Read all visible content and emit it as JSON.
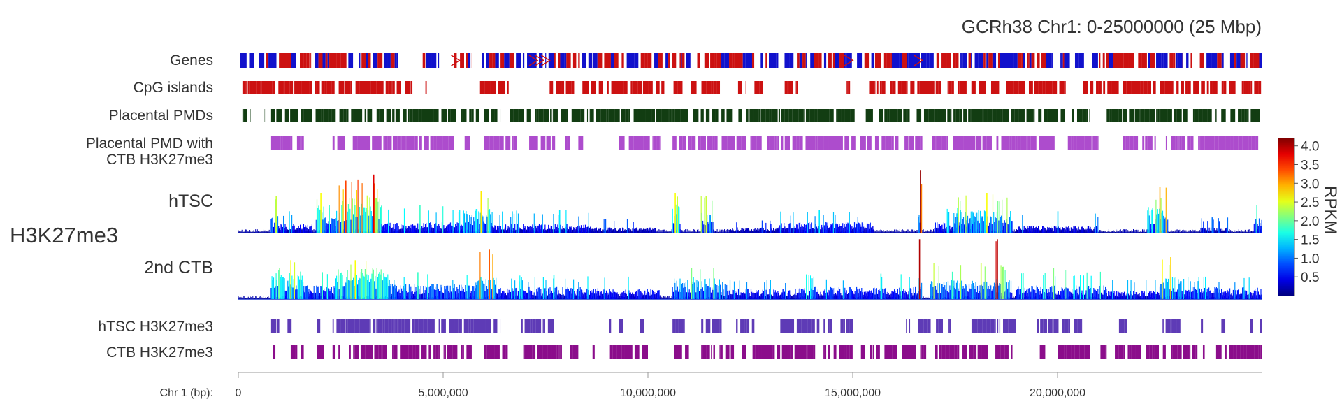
{
  "chart_data": {
    "type": "genome_browser_tracks",
    "title": "GCRh38 Chr1: 0-25000000 (25 Mbp)",
    "genomic_range": [
      0,
      25000000
    ],
    "xaxis": {
      "label": "Chr 1 (bp):",
      "ticks": [
        0,
        5000000,
        10000000,
        15000000,
        20000000
      ],
      "tick_labels": [
        "0",
        "5,000,000",
        "10,000,000",
        "15,000,000",
        "20,000,000"
      ]
    },
    "group_label": "H3K27me3",
    "interval_tracks_top": [
      {
        "key": "genes",
        "label": "Genes",
        "colors": [
          "#cc1111",
          "#1111cc"
        ],
        "intervals_mbp": [
          [
            0.05,
            2.8
          ],
          [
            2.95,
            3.9
          ],
          [
            4.5,
            4.9
          ],
          [
            5.25,
            5.7
          ],
          [
            5.95,
            25.0
          ]
        ]
      },
      {
        "key": "cpg",
        "label": "CpG islands",
        "color": "#cc1111",
        "intervals_mbp": [
          [
            0.1,
            0.9
          ],
          [
            0.95,
            2.35
          ],
          [
            2.45,
            4.2
          ],
          [
            4.1,
            4.25
          ],
          [
            4.5,
            4.6
          ],
          [
            5.9,
            6.6
          ],
          [
            7.6,
            8.2
          ],
          [
            8.4,
            10.4
          ],
          [
            10.6,
            11.8
          ],
          [
            12.2,
            12.4
          ],
          [
            12.6,
            12.8
          ],
          [
            13.3,
            13.7
          ],
          [
            14.8,
            15.0
          ],
          [
            15.4,
            16.3
          ],
          [
            16.3,
            17.6
          ],
          [
            17.6,
            19.2
          ],
          [
            19.3,
            20.2
          ],
          [
            20.5,
            22.4
          ],
          [
            22.5,
            25.0
          ]
        ]
      },
      {
        "key": "pmd",
        "label": "Placental PMDs",
        "color": "#123d12",
        "intervals_mbp": [
          [
            0.1,
            0.3
          ],
          [
            0.55,
            0.65
          ],
          [
            0.8,
            6.4
          ],
          [
            6.6,
            8.6
          ],
          [
            8.6,
            11.0
          ],
          [
            11.1,
            12.3
          ],
          [
            12.4,
            16.4
          ],
          [
            16.5,
            20.8
          ],
          [
            21.2,
            25.0
          ]
        ]
      },
      {
        "key": "pmd_ctb",
        "label": [
          "Placental PMD with",
          "CTB H3K27me3"
        ],
        "color": "#ad4ccd",
        "intervals_mbp": [
          [
            0.8,
            1.6
          ],
          [
            2.3,
            3.3
          ],
          [
            2.8,
            5.7
          ],
          [
            6.0,
            6.8
          ],
          [
            7.1,
            8.1
          ],
          [
            8.3,
            8.6
          ],
          [
            9.3,
            10.3
          ],
          [
            10.6,
            11.7
          ],
          [
            11.8,
            12.4
          ],
          [
            12.5,
            13.3
          ],
          [
            13.3,
            16.7
          ],
          [
            16.9,
            19.3
          ],
          [
            19.3,
            20.0
          ],
          [
            20.2,
            21.0
          ],
          [
            21.6,
            22.4
          ],
          [
            22.5,
            24.9
          ]
        ]
      }
    ],
    "signal_tracks": [
      {
        "key": "htsc",
        "label": "hTSC",
        "unit": "RPKM",
        "max": 4.0,
        "regions": [
          {
            "start": 0.8,
            "end": 1.0,
            "level": 1.0,
            "peak": 2.4
          },
          {
            "start": 1.0,
            "end": 1.8,
            "level": 0.5,
            "peak": 1.4
          },
          {
            "start": 1.9,
            "end": 2.1,
            "level": 1.6,
            "peak": 2.6
          },
          {
            "start": 2.1,
            "end": 2.4,
            "level": 0.9,
            "peak": 1.8
          },
          {
            "start": 2.4,
            "end": 2.9,
            "level": 2.0,
            "peak": 3.4
          },
          {
            "start": 2.9,
            "end": 3.5,
            "level": 2.2,
            "peak": 3.8
          },
          {
            "start": 3.5,
            "end": 5.5,
            "level": 0.6,
            "peak": 1.8
          },
          {
            "start": 5.5,
            "end": 6.2,
            "level": 1.4,
            "peak": 2.7
          },
          {
            "start": 6.2,
            "end": 8.6,
            "level": 0.5,
            "peak": 1.5
          },
          {
            "start": 8.6,
            "end": 10.2,
            "level": 0.3,
            "peak": 0.9
          },
          {
            "start": 10.6,
            "end": 10.8,
            "level": 1.6,
            "peak": 2.6
          },
          {
            "start": 11.3,
            "end": 11.6,
            "level": 1.2,
            "peak": 2.4
          },
          {
            "start": 12.0,
            "end": 13.2,
            "level": 0.3,
            "peak": 0.8
          },
          {
            "start": 13.2,
            "end": 15.5,
            "level": 0.6,
            "peak": 1.5
          },
          {
            "start": 16.6,
            "end": 16.7,
            "level": 1.6,
            "peak": 4.1
          },
          {
            "start": 17.0,
            "end": 18.0,
            "level": 0.6,
            "peak": 1.6
          },
          {
            "start": 17.5,
            "end": 18.9,
            "level": 1.3,
            "peak": 2.6
          },
          {
            "start": 19.0,
            "end": 21.0,
            "level": 0.4,
            "peak": 1.4
          },
          {
            "start": 22.2,
            "end": 22.7,
            "level": 1.5,
            "peak": 3.0
          },
          {
            "start": 23.5,
            "end": 24.2,
            "level": 0.3,
            "peak": 1.0
          },
          {
            "start": 24.8,
            "end": 25.0,
            "level": 0.9,
            "peak": 1.8
          }
        ]
      },
      {
        "key": "ctb",
        "label": "2nd CTB",
        "unit": "RPKM",
        "max": 4.0,
        "regions": [
          {
            "start": 0.8,
            "end": 1.6,
            "level": 1.6,
            "peak": 2.6
          },
          {
            "start": 1.6,
            "end": 2.4,
            "level": 0.8,
            "peak": 1.8
          },
          {
            "start": 2.4,
            "end": 3.7,
            "level": 1.8,
            "peak": 2.6
          },
          {
            "start": 3.7,
            "end": 5.8,
            "level": 0.9,
            "peak": 1.8
          },
          {
            "start": 5.8,
            "end": 6.3,
            "level": 1.3,
            "peak": 3.3
          },
          {
            "start": 6.3,
            "end": 8.8,
            "level": 0.7,
            "peak": 1.6
          },
          {
            "start": 8.8,
            "end": 10.3,
            "level": 0.6,
            "peak": 1.5
          },
          {
            "start": 10.6,
            "end": 11.8,
            "level": 1.2,
            "peak": 2.1
          },
          {
            "start": 11.8,
            "end": 13.6,
            "level": 0.6,
            "peak": 1.3
          },
          {
            "start": 13.6,
            "end": 16.6,
            "level": 0.7,
            "peak": 1.7
          },
          {
            "start": 16.6,
            "end": 16.7,
            "level": 1.5,
            "peak": 4.0
          },
          {
            "start": 16.9,
            "end": 18.9,
            "level": 1.1,
            "peak": 2.4
          },
          {
            "start": 18.5,
            "end": 18.6,
            "level": 1.6,
            "peak": 4.0
          },
          {
            "start": 19.0,
            "end": 21.2,
            "level": 0.8,
            "peak": 2.1
          },
          {
            "start": 21.2,
            "end": 22.5,
            "level": 0.5,
            "peak": 1.3
          },
          {
            "start": 22.5,
            "end": 23.0,
            "level": 1.3,
            "peak": 2.8
          },
          {
            "start": 23.0,
            "end": 25.0,
            "level": 0.7,
            "peak": 1.5
          }
        ]
      }
    ],
    "interval_tracks_bottom": [
      {
        "key": "htsc_k27",
        "label": "hTSC H3K27me3",
        "color": "#5e3bb6",
        "intervals_mbp": [
          [
            0.8,
            1.0
          ],
          [
            1.2,
            1.3
          ],
          [
            1.9,
            2.0
          ],
          [
            2.3,
            2.5
          ],
          [
            2.4,
            6.4
          ],
          [
            6.9,
            7.7
          ],
          [
            9.0,
            9.1
          ],
          [
            9.3,
            9.4
          ],
          [
            9.8,
            9.9
          ],
          [
            10.6,
            10.9
          ],
          [
            11.3,
            11.8
          ],
          [
            12.1,
            12.6
          ],
          [
            13.2,
            14.5
          ],
          [
            14.7,
            15.0
          ],
          [
            16.3,
            16.4
          ],
          [
            16.6,
            17.4
          ],
          [
            17.9,
            19.0
          ],
          [
            19.5,
            20.6
          ],
          [
            21.5,
            21.7
          ],
          [
            22.5,
            23.0
          ],
          [
            23.5,
            23.6
          ],
          [
            24.0,
            24.1
          ],
          [
            24.7,
            24.8
          ],
          [
            24.9,
            25.0
          ]
        ]
      },
      {
        "key": "ctb_k27",
        "label": "CTB H3K27me3",
        "color": "#8b0d8b",
        "intervals_mbp": [
          [
            0.8,
            1.6
          ],
          [
            1.9,
            2.1
          ],
          [
            2.3,
            2.6
          ],
          [
            2.7,
            5.7
          ],
          [
            6.0,
            6.6
          ],
          [
            6.9,
            7.9
          ],
          [
            8.1,
            8.3
          ],
          [
            8.6,
            8.7
          ],
          [
            9.0,
            10.0
          ],
          [
            10.6,
            11.0
          ],
          [
            11.3,
            12.1
          ],
          [
            12.3,
            13.4
          ],
          [
            13.3,
            15.0
          ],
          [
            15.2,
            16.6
          ],
          [
            16.6,
            16.8
          ],
          [
            17.0,
            18.9
          ],
          [
            19.5,
            19.7
          ],
          [
            20.0,
            20.8
          ],
          [
            21.0,
            21.2
          ],
          [
            21.4,
            22.6
          ],
          [
            22.6,
            24.9
          ],
          [
            24.9,
            25.0
          ]
        ]
      }
    ],
    "colorbar": {
      "title": "RPKM",
      "range": [
        0,
        4.2
      ],
      "ticks": [
        0.5,
        1.0,
        1.5,
        2.0,
        2.5,
        3.0,
        3.5,
        4.0
      ],
      "tick_labels": [
        "0.5",
        "1.0",
        "1.5",
        "2.0",
        "2.5",
        "3.0",
        "3.5",
        "4.0"
      ],
      "colormap": "jet",
      "position": "right"
    }
  }
}
